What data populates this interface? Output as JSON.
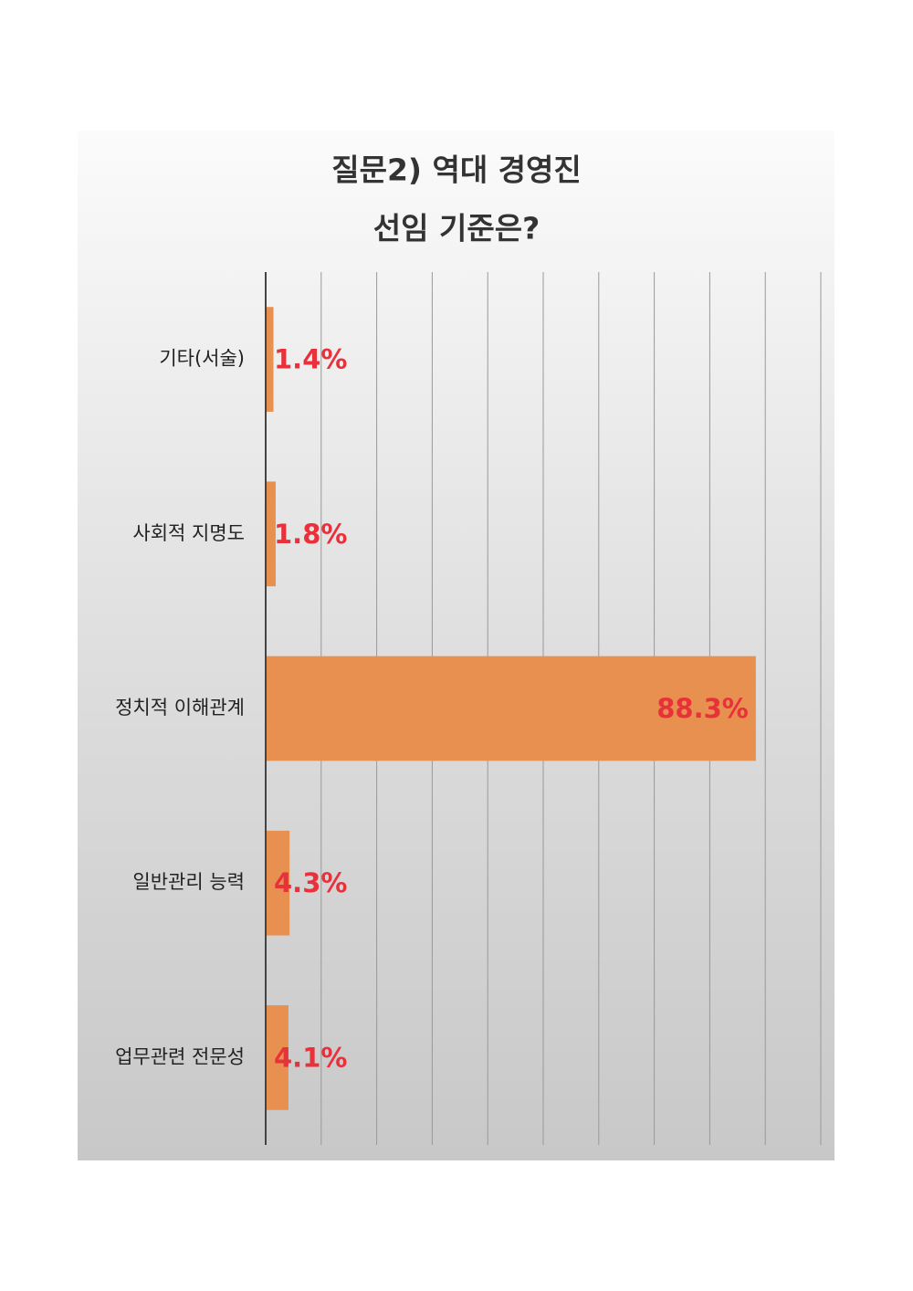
{
  "chart_data": {
    "type": "bar",
    "orientation": "horizontal",
    "title": [
      "질문2) 역대 경영진",
      "선임 기준은?"
    ],
    "categories": [
      "기타(서술)",
      "사회적 지명도",
      "정치적 이해관계",
      "일반관리 능력",
      "업무관련 전문성"
    ],
    "values": [
      1.4,
      1.8,
      88.3,
      4.3,
      4.1
    ],
    "value_labels": [
      "1.4%",
      "1.8%",
      "88.3%",
      "4.3%",
      "4.1%"
    ],
    "color": "#e8904f",
    "xlim": [
      0,
      100
    ],
    "xticks": [
      0,
      10,
      20,
      30,
      40,
      50,
      60,
      70,
      80,
      90,
      100
    ],
    "grid": true
  }
}
